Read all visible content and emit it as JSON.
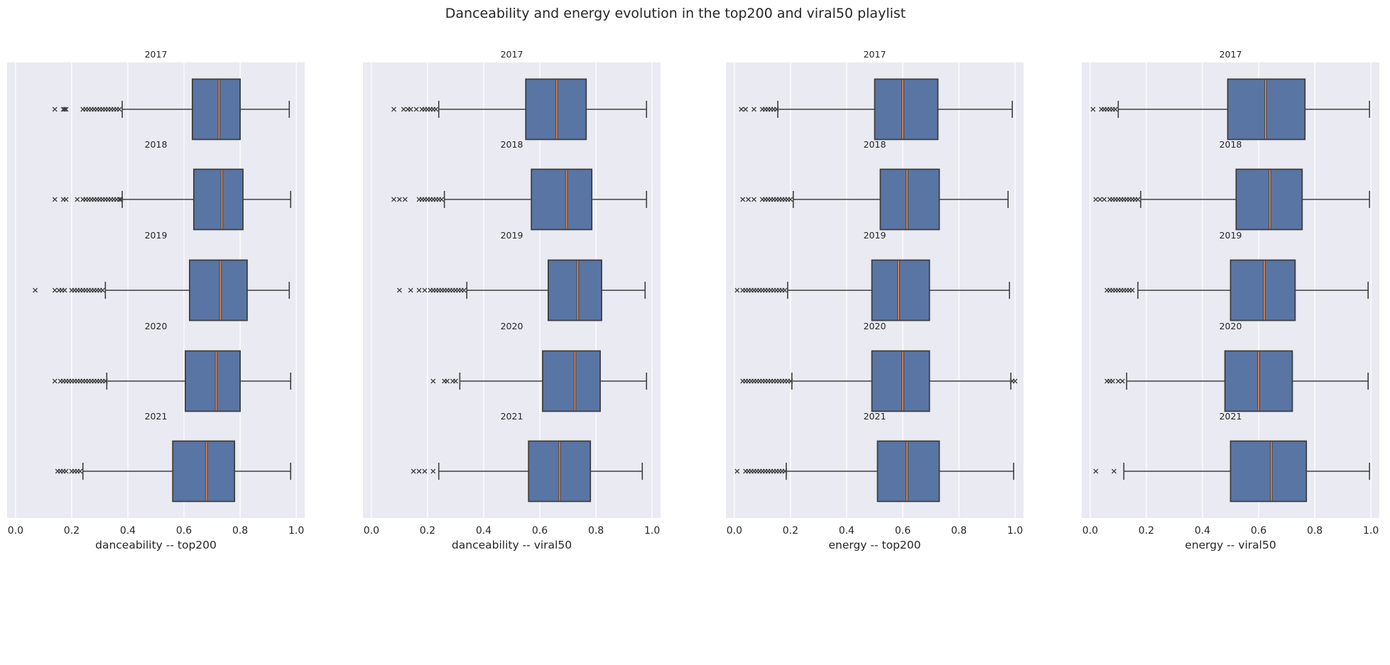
{
  "chart_data": {
    "type": "boxplot",
    "title": "Danceability and energy evolution in the top200 and viral50 playlist",
    "xlim": [
      -0.03,
      1.03
    ],
    "xticks": [
      "0.0",
      "0.2",
      "0.4",
      "0.6",
      "0.8",
      "1.0"
    ],
    "grid": true,
    "columns": [
      {
        "xlabel": "danceability -- top200",
        "panels": [
          {
            "title": "2017",
            "whisker_low": 0.38,
            "q1": 0.63,
            "median": 0.725,
            "q3": 0.8,
            "whisker_high": 0.975,
            "outliers": [
              0.14,
              0.17,
              0.175,
              0.18,
              0.24,
              0.25,
              0.26,
              0.27,
              0.28,
              0.29,
              0.3,
              0.31,
              0.32,
              0.33,
              0.34,
              0.35,
              0.36,
              0.37
            ]
          },
          {
            "title": "2018",
            "whisker_low": 0.38,
            "q1": 0.635,
            "median": 0.735,
            "q3": 0.81,
            "whisker_high": 0.98,
            "outliers": [
              0.14,
              0.17,
              0.18,
              0.22,
              0.24,
              0.25,
              0.26,
              0.27,
              0.28,
              0.29,
              0.3,
              0.31,
              0.32,
              0.33,
              0.34,
              0.35,
              0.36,
              0.37,
              0.375
            ]
          },
          {
            "title": "2019",
            "whisker_low": 0.32,
            "q1": 0.62,
            "median": 0.73,
            "q3": 0.825,
            "whisker_high": 0.975,
            "outliers": [
              0.07,
              0.14,
              0.155,
              0.165,
              0.175,
              0.2,
              0.21,
              0.22,
              0.23,
              0.24,
              0.25,
              0.26,
              0.27,
              0.28,
              0.29,
              0.3,
              0.31
            ]
          },
          {
            "title": "2020",
            "whisker_low": 0.325,
            "q1": 0.605,
            "median": 0.715,
            "q3": 0.8,
            "whisker_high": 0.98,
            "outliers": [
              0.14,
              0.16,
              0.17,
              0.18,
              0.19,
              0.2,
              0.21,
              0.22,
              0.23,
              0.24,
              0.25,
              0.26,
              0.27,
              0.28,
              0.29,
              0.3,
              0.31,
              0.32
            ]
          },
          {
            "title": "2021",
            "whisker_low": 0.24,
            "q1": 0.56,
            "median": 0.68,
            "q3": 0.78,
            "whisker_high": 0.98,
            "outliers": [
              0.15,
              0.16,
              0.17,
              0.18,
              0.2,
              0.21,
              0.22,
              0.23
            ]
          }
        ]
      },
      {
        "xlabel": "danceability -- viral50",
        "panels": [
          {
            "title": "2017",
            "whisker_low": 0.24,
            "q1": 0.55,
            "median": 0.66,
            "q3": 0.765,
            "whisker_high": 0.98,
            "outliers": [
              0.08,
              0.115,
              0.13,
              0.14,
              0.16,
              0.18,
              0.19,
              0.2,
              0.21,
              0.22,
              0.23
            ]
          },
          {
            "title": "2018",
            "whisker_low": 0.26,
            "q1": 0.57,
            "median": 0.695,
            "q3": 0.785,
            "whisker_high": 0.98,
            "outliers": [
              0.08,
              0.1,
              0.12,
              0.17,
              0.18,
              0.19,
              0.2,
              0.21,
              0.22,
              0.23,
              0.24,
              0.25
            ]
          },
          {
            "title": "2019",
            "whisker_low": 0.34,
            "q1": 0.63,
            "median": 0.735,
            "q3": 0.82,
            "whisker_high": 0.975,
            "outliers": [
              0.1,
              0.14,
              0.17,
              0.19,
              0.21,
              0.22,
              0.23,
              0.24,
              0.25,
              0.26,
              0.27,
              0.28,
              0.29,
              0.3,
              0.31,
              0.32,
              0.33
            ]
          },
          {
            "title": "2020",
            "whisker_low": 0.315,
            "q1": 0.61,
            "median": 0.725,
            "q3": 0.815,
            "whisker_high": 0.98,
            "outliers": [
              0.22,
              0.26,
              0.27,
              0.29,
              0.3
            ]
          },
          {
            "title": "2021",
            "whisker_low": 0.24,
            "q1": 0.56,
            "median": 0.67,
            "q3": 0.78,
            "whisker_high": 0.965,
            "outliers": [
              0.15,
              0.17,
              0.19,
              0.22
            ]
          }
        ]
      },
      {
        "xlabel": "energy -- top200",
        "panels": [
          {
            "title": "2017",
            "whisker_low": 0.155,
            "q1": 0.5,
            "median": 0.6,
            "q3": 0.725,
            "whisker_high": 0.99,
            "outliers": [
              0.025,
              0.04,
              0.07,
              0.1,
              0.11,
              0.12,
              0.13,
              0.14,
              0.15
            ]
          },
          {
            "title": "2018",
            "whisker_low": 0.21,
            "q1": 0.52,
            "median": 0.615,
            "q3": 0.73,
            "whisker_high": 0.975,
            "outliers": [
              0.03,
              0.05,
              0.07,
              0.1,
              0.11,
              0.12,
              0.13,
              0.14,
              0.15,
              0.16,
              0.17,
              0.18,
              0.19,
              0.2
            ]
          },
          {
            "title": "2019",
            "whisker_low": 0.19,
            "q1": 0.49,
            "median": 0.585,
            "q3": 0.695,
            "whisker_high": 0.98,
            "outliers": [
              0.01,
              0.03,
              0.04,
              0.05,
              0.06,
              0.07,
              0.08,
              0.09,
              0.1,
              0.11,
              0.12,
              0.13,
              0.14,
              0.15,
              0.16,
              0.17,
              0.18
            ]
          },
          {
            "title": "2020",
            "whisker_low": 0.205,
            "q1": 0.49,
            "median": 0.6,
            "q3": 0.695,
            "whisker_high": 0.985,
            "outliers": [
              0.03,
              0.04,
              0.05,
              0.06,
              0.07,
              0.08,
              0.09,
              0.1,
              0.11,
              0.12,
              0.13,
              0.14,
              0.15,
              0.16,
              0.17,
              0.18,
              0.19,
              0.2,
              0.99,
              1.0
            ]
          },
          {
            "title": "2021",
            "whisker_low": 0.185,
            "q1": 0.51,
            "median": 0.615,
            "q3": 0.73,
            "whisker_high": 0.995,
            "outliers": [
              0.01,
              0.04,
              0.05,
              0.06,
              0.07,
              0.08,
              0.09,
              0.1,
              0.11,
              0.12,
              0.13,
              0.14,
              0.15,
              0.16,
              0.17,
              0.18
            ]
          }
        ]
      },
      {
        "xlabel": "energy -- viral50",
        "panels": [
          {
            "title": "2017",
            "whisker_low": 0.1,
            "q1": 0.49,
            "median": 0.625,
            "q3": 0.765,
            "whisker_high": 0.995,
            "outliers": [
              0.01,
              0.04,
              0.05,
              0.06,
              0.07,
              0.08,
              0.09
            ]
          },
          {
            "title": "2018",
            "whisker_low": 0.18,
            "q1": 0.52,
            "median": 0.64,
            "q3": 0.755,
            "whisker_high": 0.995,
            "outliers": [
              0.02,
              0.035,
              0.05,
              0.07,
              0.08,
              0.09,
              0.1,
              0.11,
              0.12,
              0.13,
              0.14,
              0.15,
              0.16,
              0.17
            ]
          },
          {
            "title": "2019",
            "whisker_low": 0.17,
            "q1": 0.5,
            "median": 0.62,
            "q3": 0.73,
            "whisker_high": 0.99,
            "outliers": [
              0.06,
              0.07,
              0.08,
              0.09,
              0.1,
              0.11,
              0.12,
              0.13,
              0.14,
              0.15
            ]
          },
          {
            "title": "2020",
            "whisker_low": 0.13,
            "q1": 0.48,
            "median": 0.6,
            "q3": 0.72,
            "whisker_high": 0.99,
            "outliers": [
              0.06,
              0.07,
              0.08,
              0.1,
              0.115
            ]
          },
          {
            "title": "2021",
            "whisker_low": 0.12,
            "q1": 0.5,
            "median": 0.645,
            "q3": 0.77,
            "whisker_high": 0.995,
            "outliers": [
              0.02,
              0.085
            ]
          }
        ]
      }
    ],
    "colors": {
      "panel_bg": "#eaeaf2",
      "grid": "#ffffff",
      "box_fill": "#5975a4",
      "box_edge": "#3f3f3f",
      "median": "#dd8452",
      "outlier": "#3f3f3f",
      "text": "#262626"
    }
  }
}
